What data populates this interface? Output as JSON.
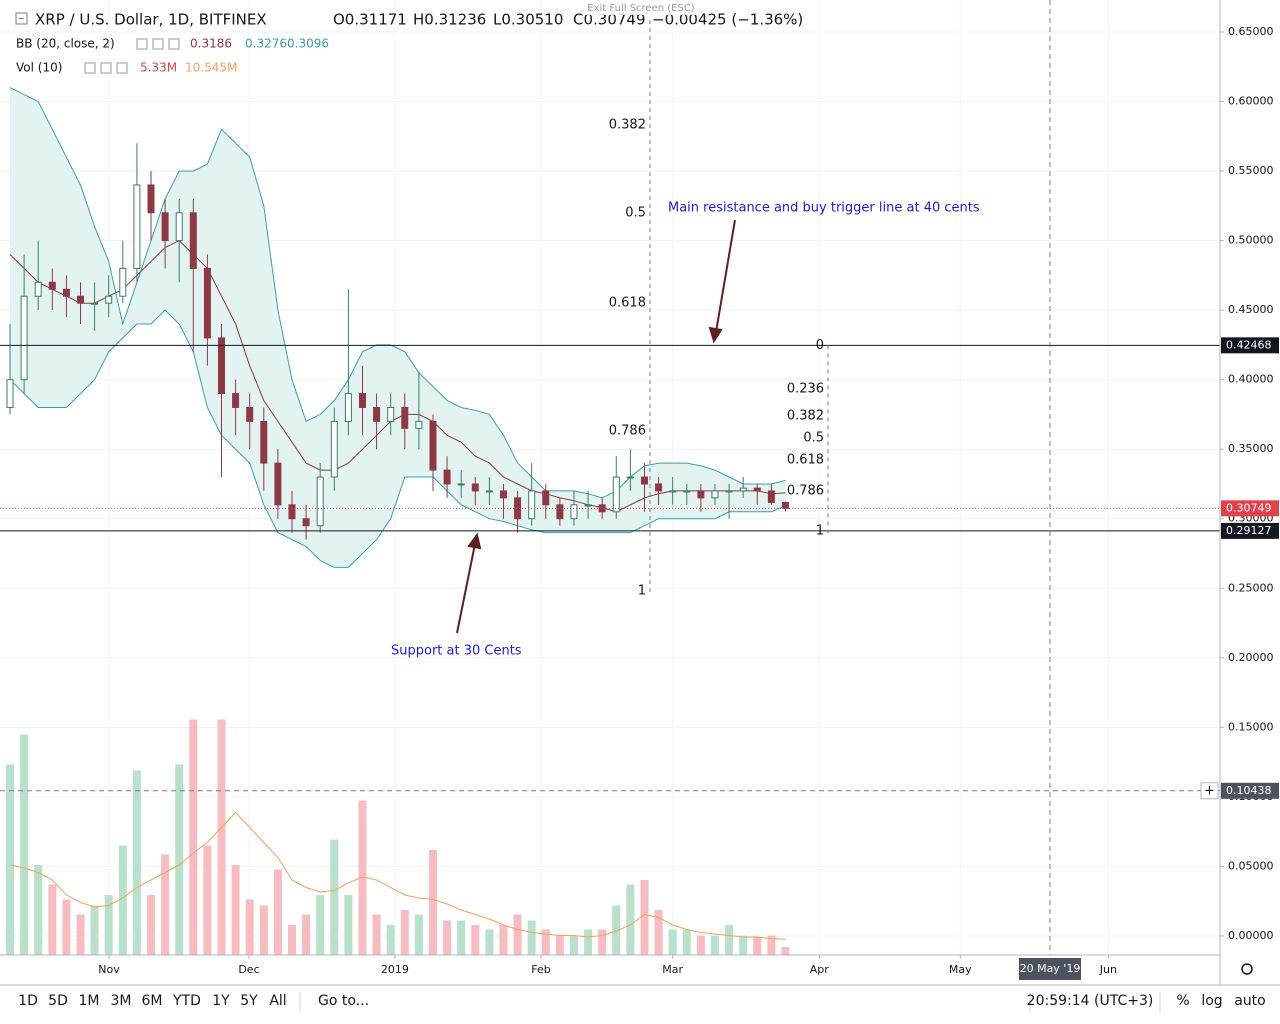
{
  "header": {
    "symbol": "XRP / U.S. Dollar, 1D, BITFINEX",
    "ohlc": [
      "O0.31171",
      "H0.31236",
      "L0.30510",
      "C0.30749"
    ],
    "change": "−0.00425 (−1.36%)",
    "tooltip": "Exit Full Screen (ESC)",
    "bb": {
      "name": "BB (20, close, 2)",
      "values": [
        "0.3186",
        "0.3276",
        "0.3096"
      ]
    },
    "vol": {
      "name": "Vol (10)",
      "values": [
        "5.33M",
        "10.545M"
      ]
    }
  },
  "chart_data": {
    "type": "candlestick",
    "open": [
      0.38,
      0.4,
      0.46,
      0.47,
      0.465,
      0.46,
      0.455,
      0.455,
      0.46,
      0.48,
      0.54,
      0.52,
      0.5,
      0.52,
      0.48,
      0.43,
      0.39,
      0.38,
      0.37,
      0.34,
      0.31,
      0.3,
      0.295,
      0.33,
      0.37,
      0.39,
      0.38,
      0.37,
      0.38,
      0.365,
      0.37,
      0.335,
      0.325,
      0.325,
      0.32,
      0.32,
      0.315,
      0.3,
      0.32,
      0.31,
      0.3,
      0.31,
      0.31,
      0.305,
      0.33,
      0.33,
      0.325,
      0.32,
      0.32,
      0.32,
      0.315,
      0.32,
      0.32,
      0.322,
      0.32,
      0.31171
    ],
    "high": [
      0.44,
      0.49,
      0.5,
      0.48,
      0.475,
      0.47,
      0.47,
      0.475,
      0.5,
      0.57,
      0.55,
      0.53,
      0.53,
      0.53,
      0.49,
      0.44,
      0.4,
      0.39,
      0.38,
      0.35,
      0.32,
      0.31,
      0.34,
      0.38,
      0.465,
      0.41,
      0.39,
      0.39,
      0.39,
      0.405,
      0.375,
      0.345,
      0.335,
      0.33,
      0.33,
      0.325,
      0.32,
      0.34,
      0.325,
      0.315,
      0.32,
      0.32,
      0.315,
      0.345,
      0.35,
      0.34,
      0.33,
      0.33,
      0.325,
      0.325,
      0.325,
      0.325,
      0.33,
      0.325,
      0.325,
      0.31236
    ],
    "low": [
      0.375,
      0.39,
      0.45,
      0.45,
      0.445,
      0.44,
      0.435,
      0.445,
      0.455,
      0.47,
      0.5,
      0.48,
      0.47,
      0.42,
      0.41,
      0.33,
      0.36,
      0.35,
      0.32,
      0.3,
      0.29,
      0.285,
      0.29,
      0.32,
      0.36,
      0.36,
      0.35,
      0.36,
      0.35,
      0.35,
      0.32,
      0.315,
      0.315,
      0.31,
      0.31,
      0.3,
      0.29,
      0.295,
      0.3,
      0.295,
      0.295,
      0.3,
      0.3,
      0.3,
      0.32,
      0.305,
      0.31,
      0.31,
      0.31,
      0.305,
      0.31,
      0.3,
      0.315,
      0.31,
      0.31,
      0.3051
    ],
    "close": [
      0.4,
      0.46,
      0.47,
      0.465,
      0.46,
      0.455,
      0.455,
      0.46,
      0.48,
      0.54,
      0.52,
      0.5,
      0.52,
      0.48,
      0.43,
      0.39,
      0.38,
      0.37,
      0.34,
      0.31,
      0.3,
      0.295,
      0.33,
      0.37,
      0.39,
      0.38,
      0.37,
      0.38,
      0.365,
      0.37,
      0.335,
      0.325,
      0.325,
      0.32,
      0.32,
      0.315,
      0.3,
      0.32,
      0.31,
      0.3,
      0.31,
      0.31,
      0.305,
      0.33,
      0.33,
      0.325,
      0.32,
      0.32,
      0.32,
      0.315,
      0.32,
      0.32,
      0.322,
      0.32,
      0.31171,
      0.30749
    ],
    "up_color": "#3a7d63",
    "down_color": "#8b3a45",
    "bands": {
      "upper": [
        0.61,
        0.605,
        0.6,
        0.58,
        0.56,
        0.54,
        0.51,
        0.485,
        0.44,
        0.47,
        0.5,
        0.53,
        0.55,
        0.55,
        0.555,
        0.58,
        0.57,
        0.56,
        0.525,
        0.45,
        0.4,
        0.37,
        0.375,
        0.385,
        0.4,
        0.42,
        0.425,
        0.425,
        0.42,
        0.405,
        0.395,
        0.385,
        0.38,
        0.378,
        0.375,
        0.36,
        0.34,
        0.33,
        0.32,
        0.32,
        0.32,
        0.318,
        0.315,
        0.32,
        0.33,
        0.338,
        0.34,
        0.34,
        0.34,
        0.338,
        0.335,
        0.33,
        0.325,
        0.325,
        0.325,
        0.3276
      ],
      "middle": [
        0.49,
        0.48,
        0.47,
        0.465,
        0.46,
        0.455,
        0.455,
        0.46,
        0.465,
        0.475,
        0.485,
        0.495,
        0.5,
        0.49,
        0.48,
        0.46,
        0.44,
        0.41,
        0.385,
        0.37,
        0.355,
        0.34,
        0.335,
        0.335,
        0.34,
        0.35,
        0.36,
        0.37,
        0.375,
        0.375,
        0.37,
        0.36,
        0.355,
        0.345,
        0.34,
        0.33,
        0.325,
        0.32,
        0.318,
        0.315,
        0.313,
        0.31,
        0.308,
        0.305,
        0.31,
        0.315,
        0.318,
        0.32,
        0.32,
        0.32,
        0.32,
        0.32,
        0.32,
        0.32,
        0.318,
        0.3186
      ],
      "lower": [
        0.4,
        0.39,
        0.38,
        0.38,
        0.38,
        0.39,
        0.4,
        0.42,
        0.43,
        0.44,
        0.44,
        0.45,
        0.44,
        0.42,
        0.38,
        0.36,
        0.35,
        0.34,
        0.31,
        0.29,
        0.285,
        0.28,
        0.27,
        0.265,
        0.265,
        0.275,
        0.285,
        0.3,
        0.33,
        0.33,
        0.33,
        0.32,
        0.31,
        0.305,
        0.3,
        0.298,
        0.295,
        0.292,
        0.29,
        0.29,
        0.29,
        0.29,
        0.29,
        0.29,
        0.29,
        0.295,
        0.3,
        0.3,
        0.3,
        0.3,
        0.3,
        0.305,
        0.305,
        0.305,
        0.305,
        0.3096
      ],
      "line_color": "#3d9ea0",
      "middle_color": "#8b3a45",
      "fill": "#e3f3f1"
    },
    "volume": {
      "values": [
        127,
        147,
        60,
        47,
        37,
        27,
        33,
        40,
        73,
        123,
        40,
        67,
        127,
        157,
        73,
        157,
        60,
        37,
        33,
        57,
        20,
        27,
        40,
        77,
        40,
        103,
        27,
        20,
        30,
        27,
        70,
        23,
        23,
        20,
        17,
        20,
        27,
        23,
        17,
        13,
        13,
        17,
        17,
        33,
        47,
        50,
        30,
        17,
        17,
        13,
        13,
        20,
        13,
        12,
        13,
        5.33
      ],
      "ma": [
        60,
        58,
        55,
        50,
        40,
        35,
        32,
        33,
        38,
        45,
        50,
        55,
        60,
        68,
        75,
        85,
        95,
        85,
        75,
        65,
        50,
        45,
        42,
        43,
        48,
        52,
        50,
        45,
        40,
        38,
        37,
        34,
        30,
        27,
        24,
        20,
        17,
        15,
        14,
        13,
        13,
        12,
        13,
        16,
        20,
        27,
        25,
        20,
        17,
        15,
        14,
        13,
        12,
        12,
        11,
        10.545
      ],
      "up_color": "#b9e0cb",
      "down_color": "#f6bcc1",
      "ma_color": "#f0a060"
    },
    "xlim": [
      -0.71,
      85.82
    ],
    "xticks": [
      {
        "value": 7.02,
        "label": "Nov"
      },
      {
        "value": 16.95,
        "label": "Dec"
      },
      {
        "value": 27.3,
        "label": "2019"
      },
      {
        "value": 37.66,
        "label": "Feb"
      },
      {
        "value": 47,
        "label": "Mar"
      },
      {
        "value": 57.4,
        "label": "Apr"
      },
      {
        "value": 67.4,
        "label": "May"
      },
      {
        "value": 77.9,
        "label": "Jun"
      }
    ],
    "ylim": [
      -0.0137,
      0.673
    ],
    "yticks": [
      {
        "value": 0.65,
        "label": "0.65000"
      },
      {
        "value": 0.6,
        "label": "0.60000"
      },
      {
        "value": 0.55,
        "label": "0.55000"
      },
      {
        "value": 0.5,
        "label": "0.50000"
      },
      {
        "value": 0.45,
        "label": "0.45000"
      },
      {
        "value": 0.4,
        "label": "0.40000"
      },
      {
        "value": 0.35,
        "label": "0.35000"
      },
      {
        "value": 0.3,
        "label": "0.30000"
      },
      {
        "value": 0.25,
        "label": "0.25000"
      },
      {
        "value": 0.2,
        "label": "0.20000"
      },
      {
        "value": 0.15,
        "label": "0.15000"
      },
      {
        "value": 0.1,
        "label": "0.10000"
      },
      {
        "value": 0.05,
        "label": "0.05000"
      },
      {
        "value": 0,
        "label": "0.00000"
      }
    ],
    "y2lim": [
      0,
      160
    ],
    "grid": true,
    "levels": [
      {
        "value": 0.42468,
        "label": "0.42468",
        "color": "#131722"
      },
      {
        "value": 0.29127,
        "label": "0.29127",
        "color": "#131722"
      }
    ],
    "last_price": {
      "value": 0.30749,
      "label": "0.30749",
      "color": "#e0424b"
    },
    "crosshair": {
      "value": 0.10438,
      "label": "0.10438",
      "x": 73.76,
      "x_label": "20 May '19"
    },
    "fibs": [
      {
        "x": 45.39,
        "levels": [
          {
            "label": "0.382",
            "value": 0.5831
          },
          {
            "label": "0.5",
            "value": 0.5198
          },
          {
            "label": "0.618",
            "value": 0.4551
          },
          {
            "label": "0.786",
            "value": 0.3631
          },
          {
            "label": "1",
            "value": 0.2481
          }
        ]
      },
      {
        "x": 58.02,
        "levels": [
          {
            "label": "0",
            "value": 0.42468
          },
          {
            "label": "0.236",
            "value": 0.3932
          },
          {
            "label": "0.382",
            "value": 0.3737
          },
          {
            "label": "0.5",
            "value": 0.358
          },
          {
            "label": "0.618",
            "value": 0.3422
          },
          {
            "label": "0.786",
            "value": 0.3198
          },
          {
            "label": "1",
            "value": 0.29127
          }
        ]
      }
    ],
    "annotations": [
      "Main resistance and buy trigger line at 40 cents",
      "Support at 30 Cents"
    ]
  },
  "toolbar": {
    "ranges": [
      "1D",
      "5D",
      "1M",
      "3M",
      "6M",
      "YTD",
      "1Y",
      "5Y",
      "All"
    ],
    "goto": "Go to...",
    "clock": "20:59:14 (UTC+3)",
    "options": [
      "%",
      "log",
      "auto"
    ]
  }
}
